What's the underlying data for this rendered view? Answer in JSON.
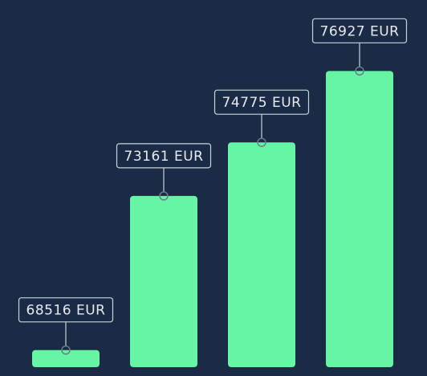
{
  "chart_data": {
    "type": "bar",
    "values": [
      68516,
      73161,
      74775,
      76927
    ],
    "value_labels": [
      "68516 EUR",
      "73161 EUR",
      "74775 EUR",
      "76927 EUR"
    ],
    "color": "#66f5a4",
    "ylim": [
      68000,
      78000
    ]
  }
}
